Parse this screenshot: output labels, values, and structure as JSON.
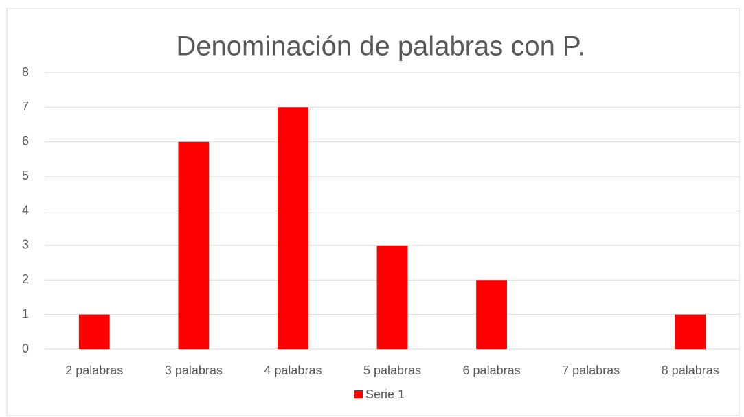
{
  "chart_data": {
    "type": "bar",
    "title": "Denominación de palabras con P.",
    "categories": [
      "2 palabras",
      "3 palabras",
      "4 palabras",
      "5 palabras",
      "6 palabras",
      "7 palabras",
      "8 palabras"
    ],
    "series": [
      {
        "name": "Serie 1",
        "color": "#ff0000",
        "values": [
          1,
          6,
          7,
          3,
          2,
          0,
          1
        ]
      }
    ],
    "ylim": [
      0,
      8
    ],
    "yticks": [
      0,
      1,
      2,
      3,
      4,
      5,
      6,
      7,
      8
    ],
    "grid": true,
    "legend": "bottom"
  }
}
